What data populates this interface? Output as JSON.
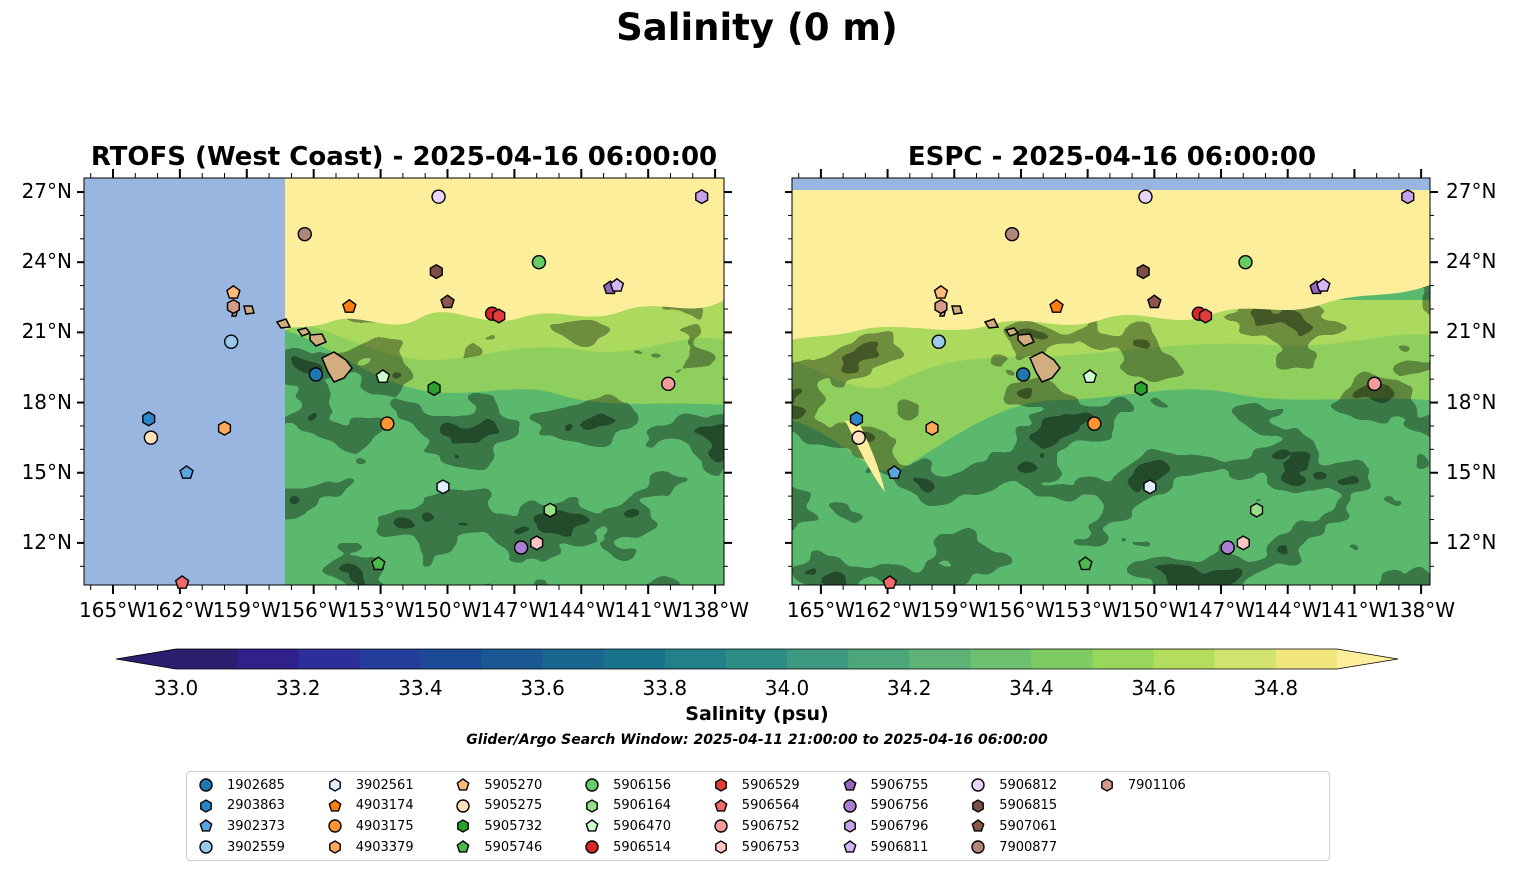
{
  "figure": {
    "title": "Salinity (0 m)",
    "panels": [
      {
        "title": "RTOFS (West Coast) - 2025-04-16 06:00:00",
        "model": "RTOFS"
      },
      {
        "title": "ESPC - 2025-04-16 06:00:00",
        "model": "ESPC"
      }
    ],
    "x_ticks": [
      "165°W",
      "162°W",
      "159°W",
      "156°W",
      "153°W",
      "150°W",
      "147°W",
      "144°W",
      "141°W",
      "138°W"
    ],
    "y_ticks": [
      "27°N",
      "24°N",
      "21°N",
      "18°N",
      "15°N",
      "12°N"
    ],
    "colorbar": {
      "label": "Salinity (psu)",
      "ticks": [
        "33.0",
        "33.2",
        "33.4",
        "33.6",
        "33.8",
        "34.0",
        "34.2",
        "34.4",
        "34.6",
        "34.8"
      ],
      "colors": [
        "#2c1e6e",
        "#30208a",
        "#2c2f99",
        "#243c9a",
        "#1d4a96",
        "#1a5893",
        "#19668f",
        "#1a738c",
        "#228088",
        "#2e8d84",
        "#3d997f",
        "#4ca67a",
        "#5db375",
        "#6cc06e",
        "#80cc64",
        "#98d65c",
        "#b4dd5e",
        "#d3e36f",
        "#f1e57e"
      ],
      "extend": "both"
    },
    "window_note": "Glider/Argo Search Window: 2025-04-11 21:00:00 to 2025-04-16 06:00:00",
    "map_colors": {
      "land_mask": "#98b6e0",
      "high_salinity": "#fdee9c",
      "hawaii_land": "#d2ad80"
    }
  },
  "chart_data": {
    "type": "scatter",
    "xlabel": "",
    "ylabel": "",
    "xlim": [
      -166.3,
      -137.6
    ],
    "ylim": [
      10.2,
      27.6
    ],
    "points": [
      {
        "id": "1902685",
        "lon": -155.9,
        "lat": 19.2,
        "marker": "circle",
        "color": "#1f77b4"
      },
      {
        "id": "2903863",
        "lon": -163.4,
        "lat": 17.3,
        "marker": "hexagon",
        "color": "#2a86c8"
      },
      {
        "id": "3902373",
        "lon": -161.7,
        "lat": 15.0,
        "marker": "pentagon",
        "color": "#5aa5dd"
      },
      {
        "id": "3902559",
        "lon": -159.7,
        "lat": 20.6,
        "marker": "circle",
        "color": "#9bc9ec"
      },
      {
        "id": "3902561",
        "lon": -150.2,
        "lat": 14.4,
        "marker": "hexagon",
        "color": "#e0efff"
      },
      {
        "id": "4903174",
        "lon": -154.4,
        "lat": 22.1,
        "marker": "pentagon",
        "color": "#ff7f0e"
      },
      {
        "id": "4903175",
        "lon": -152.7,
        "lat": 17.1,
        "marker": "circle",
        "color": "#ff9433"
      },
      {
        "id": "4903379",
        "lon": -160.0,
        "lat": 16.9,
        "marker": "hexagon",
        "color": "#ffa85a"
      },
      {
        "id": "5905270",
        "lon": -159.6,
        "lat": 22.7,
        "marker": "pentagon",
        "color": "#ffbb78"
      },
      {
        "id": "5905275",
        "lon": -163.3,
        "lat": 16.5,
        "marker": "circle",
        "color": "#ffe1bd"
      },
      {
        "id": "5905732",
        "lon": -150.6,
        "lat": 18.6,
        "marker": "hexagon",
        "color": "#2ca02c"
      },
      {
        "id": "5905746",
        "lon": -153.1,
        "lat": 11.1,
        "marker": "pentagon",
        "color": "#4cbb4c"
      },
      {
        "id": "5906156",
        "lon": -145.9,
        "lat": 24.0,
        "marker": "circle",
        "color": "#66cc66"
      },
      {
        "id": "5906164",
        "lon": -145.4,
        "lat": 13.4,
        "marker": "hexagon",
        "color": "#98df8a"
      },
      {
        "id": "5906470",
        "lon": -152.9,
        "lat": 19.1,
        "marker": "pentagon",
        "color": "#ccffcc"
      },
      {
        "id": "5906514",
        "lon": -148.0,
        "lat": 21.8,
        "marker": "circle",
        "color": "#d62728"
      },
      {
        "id": "5906529",
        "lon": -147.7,
        "lat": 21.7,
        "marker": "hexagon",
        "color": "#e03c3c"
      },
      {
        "id": "5906564",
        "lon": -161.9,
        "lat": 10.3,
        "marker": "pentagon",
        "color": "#f06a6a"
      },
      {
        "id": "5906752",
        "lon": -140.1,
        "lat": 18.8,
        "marker": "circle",
        "color": "#f29b9b"
      },
      {
        "id": "5906753",
        "lon": -146.0,
        "lat": 12.0,
        "marker": "hexagon",
        "color": "#ffc4c4"
      },
      {
        "id": "5906755",
        "lon": -142.7,
        "lat": 22.9,
        "marker": "pentagon",
        "color": "#9467bd"
      },
      {
        "id": "5906756",
        "lon": -146.7,
        "lat": 11.8,
        "marker": "circle",
        "color": "#a97ed3"
      },
      {
        "id": "5906796",
        "lon": -138.6,
        "lat": 26.8,
        "marker": "hexagon",
        "color": "#c5a3ea"
      },
      {
        "id": "5906811",
        "lon": -142.4,
        "lat": 23.0,
        "marker": "pentagon",
        "color": "#d4b5f5"
      },
      {
        "id": "5906812",
        "lon": -150.4,
        "lat": 26.8,
        "marker": "circle",
        "color": "#e8d5fa"
      },
      {
        "id": "5906815",
        "lon": -150.5,
        "lat": 23.6,
        "marker": "hexagon",
        "color": "#7b4f45"
      },
      {
        "id": "5907061",
        "lon": -150.0,
        "lat": 22.3,
        "marker": "pentagon",
        "color": "#8c564b"
      },
      {
        "id": "7900877",
        "lon": -156.4,
        "lat": 25.2,
        "marker": "circle",
        "color": "#b0857a"
      },
      {
        "id": "7901106",
        "lon": -159.6,
        "lat": 22.1,
        "marker": "hexagon",
        "color": "#d39b88"
      }
    ]
  }
}
